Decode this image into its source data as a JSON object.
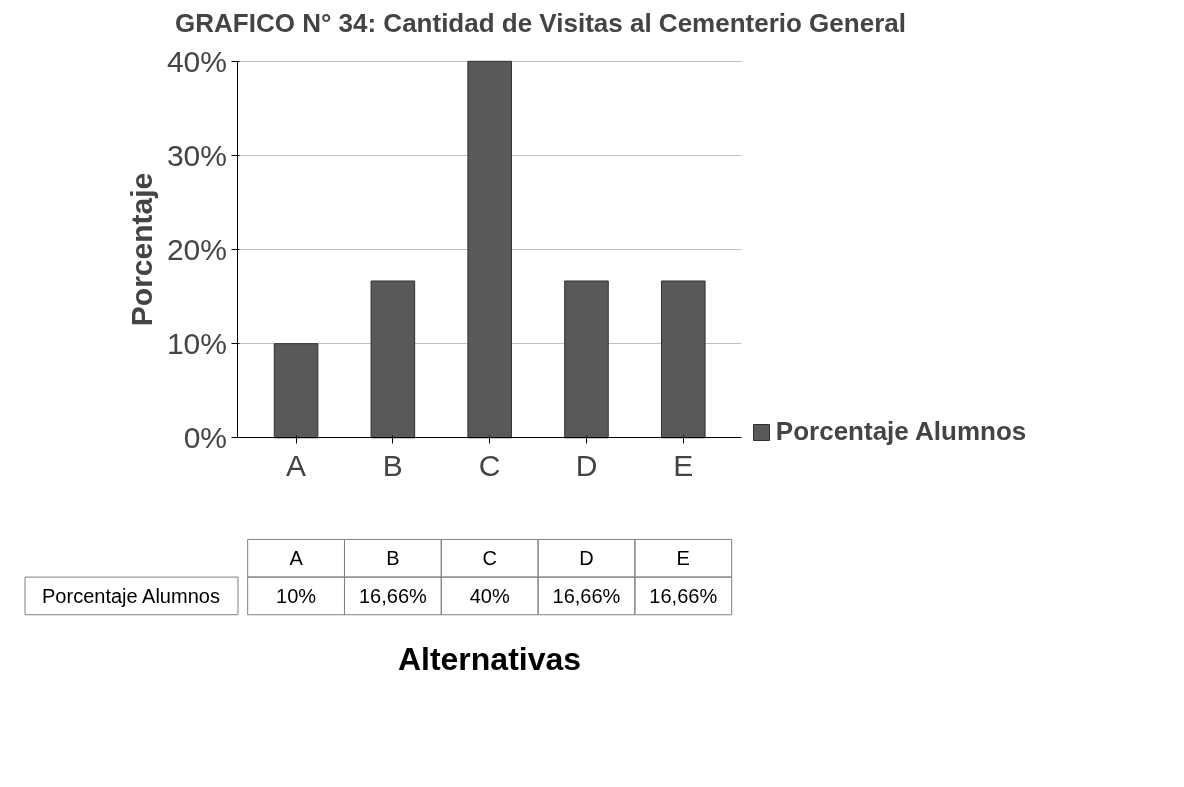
{
  "chart_data": {
    "type": "bar",
    "title": "GRAFICO N° 34: Cantidad de Visitas al Cementerio General",
    "xlabel": "Alternativas",
    "ylabel": "Porcentaje",
    "categories": [
      "A",
      "B",
      "C",
      "D",
      "E"
    ],
    "series": [
      {
        "name": "Porcentaje Alumnos",
        "color": "#595959",
        "values": [
          10,
          16.66,
          40,
          16.66,
          16.66
        ],
        "value_labels": [
          "10%",
          "16,66%",
          "40%",
          "16,66%",
          "16,66%"
        ]
      }
    ],
    "ylim": [
      0,
      40
    ],
    "yticks": [
      {
        "value": 0,
        "label": "0%"
      },
      {
        "value": 10,
        "label": "10%"
      },
      {
        "value": 20,
        "label": "20%"
      },
      {
        "value": 30,
        "label": "30%"
      },
      {
        "value": 40,
        "label": "40%"
      }
    ],
    "grid": "y",
    "legend": "right"
  }
}
